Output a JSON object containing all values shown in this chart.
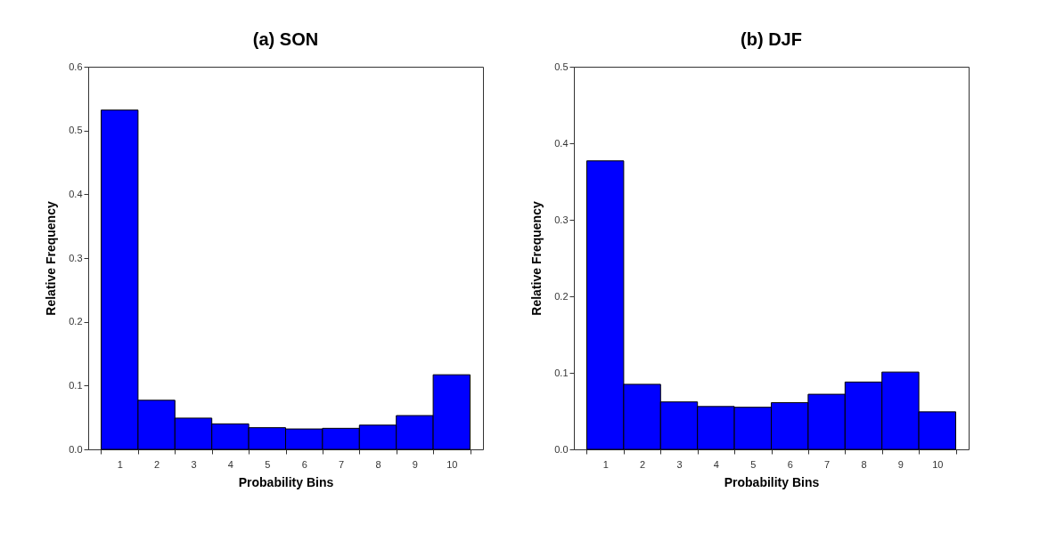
{
  "chart_data": [
    {
      "type": "bar",
      "title": "(a) SON",
      "xlabel": "Probability Bins",
      "ylabel": "Relative Frequency",
      "categories": [
        "1",
        "2",
        "3",
        "4",
        "5",
        "6",
        "7",
        "8",
        "9",
        "10"
      ],
      "values": [
        0.532,
        0.077,
        0.049,
        0.04,
        0.034,
        0.032,
        0.033,
        0.038,
        0.053,
        0.117
      ],
      "color": "#0000ff",
      "ylim": [
        0,
        0.6
      ],
      "yticks": [
        {
          "value": 0,
          "label": "0.0"
        },
        0.1,
        0.2,
        0.3,
        0.4,
        0.5,
        0.6
      ]
    },
    {
      "type": "bar",
      "title": "(b) DJF",
      "xlabel": "Probability Bins",
      "ylabel": "Relative Frequency",
      "categories": [
        "1",
        "2",
        "3",
        "4",
        "5",
        "6",
        "7",
        "8",
        "9",
        "10"
      ],
      "values": [
        0.377,
        0.085,
        0.062,
        0.056,
        0.055,
        0.061,
        0.072,
        0.088,
        0.101,
        0.049
      ],
      "color": "#0000ff",
      "ylim": [
        0,
        0.5
      ],
      "yticks": [
        {
          "value": 0,
          "label": "0.0"
        },
        0.1,
        0.2,
        0.3,
        0.4,
        0.5
      ]
    }
  ]
}
